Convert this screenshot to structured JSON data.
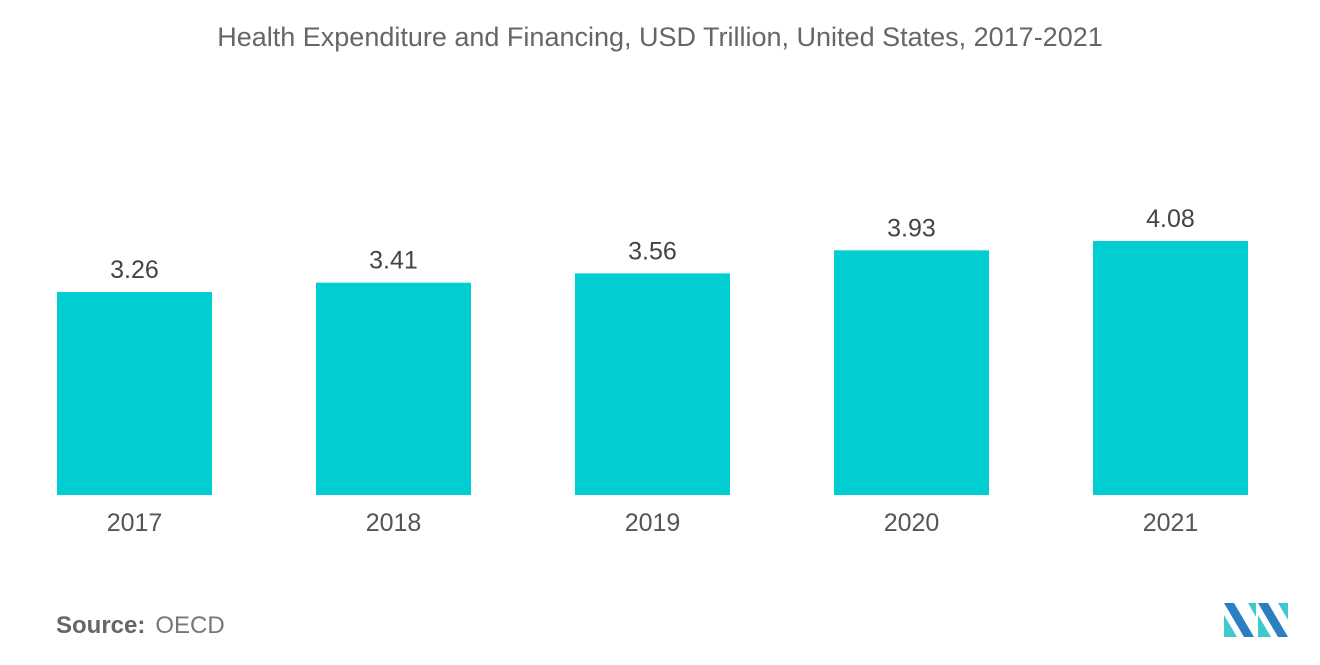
{
  "chart_data": {
    "type": "bar",
    "title": "Health Expenditure and Financing, USD Trillion, United States, 2017-2021",
    "categories": [
      "2017",
      "2018",
      "2019",
      "2020",
      "2021"
    ],
    "values": [
      3.26,
      3.41,
      3.56,
      3.93,
      4.08
    ],
    "value_labels": [
      "3.26",
      "3.41",
      "3.56",
      "3.93",
      "4.08"
    ],
    "ylim": [
      0,
      4.08
    ],
    "grid": false,
    "bar_color": "#00ced1"
  },
  "source": {
    "label": "Source:",
    "value": "OECD"
  },
  "colors": {
    "logo_dark": "#2a7fc1",
    "logo_light": "#3fc9cc"
  }
}
